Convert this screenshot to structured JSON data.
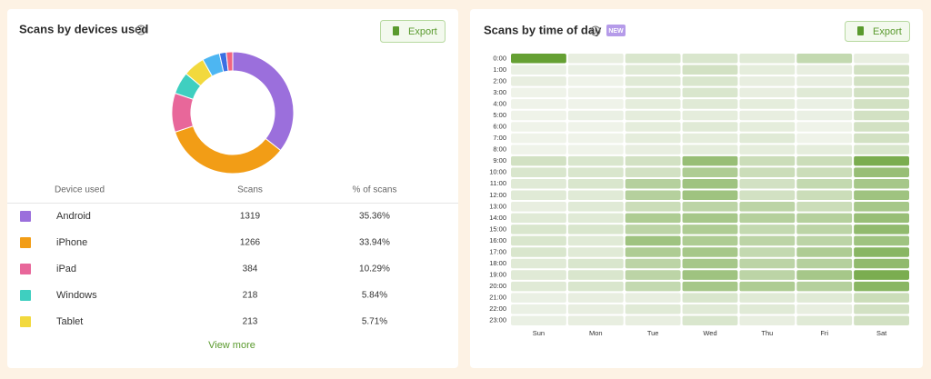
{
  "chart_data": [
    {
      "type": "pie",
      "title": "Scans by devices used",
      "donut": true,
      "categories": [
        "Android",
        "iPhone",
        "iPad",
        "Windows",
        "Tablet",
        null,
        null,
        null
      ],
      "values": [
        35.36,
        33.94,
        10.29,
        5.84,
        5.71,
        4.6,
        1.8,
        1.7
      ],
      "value_labels": [
        "35.36%",
        "33.94%",
        "10.29%",
        "5.84%",
        "5.71%",
        null,
        null,
        null
      ],
      "scans": [
        1319,
        1266,
        384,
        218,
        213,
        null,
        null,
        null
      ],
      "colors": [
        "#9b6fdc",
        "#f29d16",
        "#e8679a",
        "#3fcfc0",
        "#f2d93e",
        "#4db6f2",
        "#3b6fe2",
        "#f26580"
      ]
    },
    {
      "type": "heatmap",
      "title": "Scans by time of day",
      "x": [
        "Sun",
        "Mon",
        "Tue",
        "Wed",
        "Thu",
        "Fri",
        "Sat"
      ],
      "y": [
        "0:00",
        "1:00",
        "2:00",
        "3:00",
        "4:00",
        "5:00",
        "6:00",
        "7:00",
        "8:00",
        "9:00",
        "10:00",
        "11:00",
        "12:00",
        "13:00",
        "14:00",
        "15:00",
        "16:00",
        "17:00",
        "18:00",
        "19:00",
        "20:00",
        "21:00",
        "22:00",
        "23:00"
      ],
      "values": [
        [
          100,
          10,
          20,
          20,
          15,
          35,
          10
        ],
        [
          8,
          8,
          15,
          25,
          12,
          10,
          25
        ],
        [
          10,
          5,
          15,
          20,
          10,
          10,
          25
        ],
        [
          5,
          5,
          15,
          20,
          10,
          15,
          25
        ],
        [
          5,
          5,
          12,
          15,
          12,
          8,
          25
        ],
        [
          5,
          8,
          12,
          12,
          10,
          8,
          25
        ],
        [
          5,
          5,
          12,
          15,
          12,
          5,
          25
        ],
        [
          5,
          5,
          12,
          12,
          15,
          5,
          25
        ],
        [
          5,
          5,
          10,
          12,
          12,
          12,
          20
        ],
        [
          25,
          20,
          25,
          65,
          30,
          30,
          85
        ],
        [
          20,
          20,
          25,
          50,
          30,
          30,
          65
        ],
        [
          15,
          20,
          45,
          60,
          25,
          35,
          55
        ],
        [
          15,
          15,
          45,
          60,
          25,
          30,
          60
        ],
        [
          10,
          15,
          30,
          40,
          40,
          30,
          55
        ],
        [
          15,
          15,
          50,
          55,
          45,
          45,
          65
        ],
        [
          20,
          20,
          40,
          50,
          35,
          40,
          70
        ],
        [
          20,
          15,
          60,
          50,
          40,
          40,
          60
        ],
        [
          20,
          15,
          50,
          55,
          35,
          50,
          75
        ],
        [
          15,
          20,
          40,
          55,
          40,
          45,
          70
        ],
        [
          15,
          20,
          40,
          60,
          40,
          55,
          85
        ],
        [
          15,
          20,
          35,
          55,
          50,
          45,
          75
        ],
        [
          8,
          10,
          10,
          20,
          15,
          15,
          30
        ],
        [
          8,
          10,
          15,
          15,
          15,
          10,
          25
        ],
        [
          8,
          10,
          10,
          20,
          10,
          15,
          25
        ]
      ],
      "color_range": [
        "#f6f7f3",
        "#65a033"
      ]
    }
  ],
  "left_panel": {
    "export_button": "Export",
    "table_headers": [
      "Device used",
      "Scans",
      "% of scans"
    ],
    "view_more": "View more"
  },
  "right_panel": {
    "export_button": "Export",
    "badge": "NEW"
  }
}
